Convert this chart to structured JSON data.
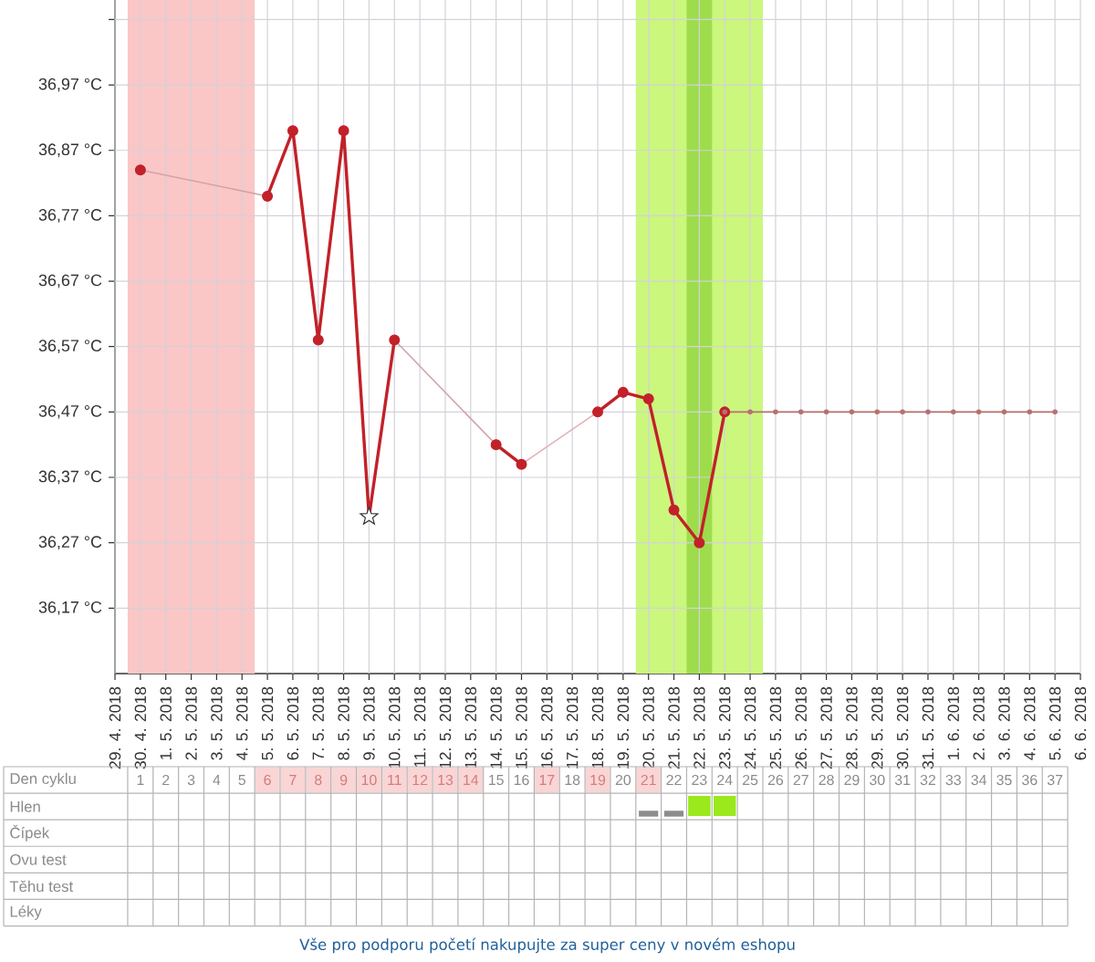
{
  "chart_data": [
    {
      "type": "line",
      "x": [
        "2018-04-30",
        "2018-05-01",
        "2018-05-02",
        "2018-05-03",
        "2018-05-04",
        "2018-05-05",
        "2018-05-06",
        "2018-05-07",
        "2018-05-08",
        "2018-05-09",
        "2018-05-10",
        "2018-05-11",
        "2018-05-12",
        "2018-05-13",
        "2018-05-14",
        "2018-05-15",
        "2018-05-16",
        "2018-05-17",
        "2018-05-18",
        "2018-05-19",
        "2018-05-20",
        "2018-05-21",
        "2018-05-22",
        "2018-05-23",
        "2018-05-24",
        "2018-05-25",
        "2018-05-26",
        "2018-05-27",
        "2018-05-28",
        "2018-05-29",
        "2018-05-30",
        "2018-05-31",
        "2018-06-01",
        "2018-06-02",
        "2018-06-03",
        "2018-06-04",
        "2018-06-05"
      ],
      "xlim": [
        "2018-04-29",
        "2018-06-06"
      ],
      "xticks": [
        {
          "value": "2018-04-29",
          "label": "29. 4. 2018"
        },
        {
          "value": "2018-04-30",
          "label": "30. 4. 2018"
        },
        {
          "value": "2018-05-01",
          "label": "1. 5. 2018"
        },
        {
          "value": "2018-05-02",
          "label": "2. 5. 2018"
        },
        {
          "value": "2018-05-03",
          "label": "3. 5. 2018"
        },
        {
          "value": "2018-05-04",
          "label": "4. 5. 2018"
        },
        {
          "value": "2018-05-05",
          "label": "5. 5. 2018"
        },
        {
          "value": "2018-05-06",
          "label": "6. 5. 2018"
        },
        {
          "value": "2018-05-07",
          "label": "7. 5. 2018"
        },
        {
          "value": "2018-05-08",
          "label": "8. 5. 2018"
        },
        {
          "value": "2018-05-09",
          "label": "9. 5. 2018"
        },
        {
          "value": "2018-05-10",
          "label": "10. 5. 2018"
        },
        {
          "value": "2018-05-11",
          "label": "11. 5. 2018"
        },
        {
          "value": "2018-05-12",
          "label": "12. 5. 2018"
        },
        {
          "value": "2018-05-13",
          "label": "13. 5. 2018"
        },
        {
          "value": "2018-05-14",
          "label": "14. 5. 2018"
        },
        {
          "value": "2018-05-15",
          "label": "15. 5. 2018"
        },
        {
          "value": "2018-05-16",
          "label": "16. 5. 2018"
        },
        {
          "value": "2018-05-17",
          "label": "17. 5. 2018"
        },
        {
          "value": "2018-05-18",
          "label": "18. 5. 2018"
        },
        {
          "value": "2018-05-19",
          "label": "19. 5. 2018"
        },
        {
          "value": "2018-05-20",
          "label": "20. 5. 2018"
        },
        {
          "value": "2018-05-21",
          "label": "21. 5. 2018"
        },
        {
          "value": "2018-05-22",
          "label": "22. 5. 2018"
        },
        {
          "value": "2018-05-23",
          "label": "23. 5. 2018"
        },
        {
          "value": "2018-05-24",
          "label": "24. 5. 2018"
        },
        {
          "value": "2018-05-25",
          "label": "25. 5. 2018"
        },
        {
          "value": "2018-05-26",
          "label": "26. 5. 2018"
        },
        {
          "value": "2018-05-27",
          "label": "27. 5. 2018"
        },
        {
          "value": "2018-05-28",
          "label": "28. 5. 2018"
        },
        {
          "value": "2018-05-29",
          "label": "29. 5. 2018"
        },
        {
          "value": "2018-05-30",
          "label": "30. 5. 2018"
        },
        {
          "value": "2018-05-31",
          "label": "31. 5. 2018"
        },
        {
          "value": "2018-06-01",
          "label": "1. 6. 2018"
        },
        {
          "value": "2018-06-02",
          "label": "2. 6. 2018"
        },
        {
          "value": "2018-06-03",
          "label": "3. 6. 2018"
        },
        {
          "value": "2018-06-04",
          "label": "4. 6. 2018"
        },
        {
          "value": "2018-06-05",
          "label": "5. 6. 2018"
        },
        {
          "value": "2018-06-06",
          "label": "6. 6. 2018"
        }
      ],
      "ylim": [
        36.07,
        37.1
      ],
      "yticks": [
        {
          "value": 36.17,
          "label": "36,17 °C"
        },
        {
          "value": 36.27,
          "label": "36,27 °C"
        },
        {
          "value": 36.37,
          "label": "36,37 °C"
        },
        {
          "value": 36.47,
          "label": "36,47 °C"
        },
        {
          "value": 36.57,
          "label": "36,57 °C"
        },
        {
          "value": 36.67,
          "label": "36,67 °C"
        },
        {
          "value": 36.77,
          "label": "36,77 °C"
        },
        {
          "value": 36.87,
          "label": "36,87 °C"
        },
        {
          "value": 36.97,
          "label": "36,97 °C"
        },
        {
          "value": 37.07,
          "label": null
        }
      ],
      "grid": true,
      "bands": [
        {
          "axis": "x",
          "from": "2018-04-29T12:00",
          "to": "2018-05-04T12:00",
          "color": "#fbc6c6"
        },
        {
          "axis": "x",
          "from": "2018-05-19T12:00",
          "to": "2018-05-24T12:00",
          "color": "#cbf77c"
        },
        {
          "axis": "x",
          "from": "2018-05-21T12:00",
          "to": "2018-05-22T12:00",
          "color": "#9edc4c"
        }
      ],
      "series": [
        {
          "color": "#c22129",
          "marker": "circle",
          "values": [
            36.84,
            null,
            null,
            null,
            null,
            36.8,
            36.9,
            36.58,
            36.9,
            36.31,
            36.58,
            null,
            null,
            null,
            36.42,
            36.39,
            null,
            null,
            36.47,
            36.5,
            36.49,
            36.32,
            36.27,
            36.47,
            null,
            null,
            null,
            null,
            null,
            null,
            null,
            null,
            null,
            null,
            null,
            null,
            null
          ]
        },
        {
          "color": "#b87070",
          "marker": "circle",
          "values": [
            null,
            null,
            null,
            null,
            null,
            null,
            null,
            null,
            null,
            null,
            null,
            null,
            null,
            null,
            null,
            null,
            null,
            null,
            null,
            null,
            null,
            null,
            null,
            36.47,
            36.47,
            36.47,
            36.47,
            36.47,
            36.47,
            36.47,
            36.47,
            36.47,
            36.47,
            36.47,
            36.47,
            36.47,
            36.47
          ]
        },
        {
          "color": "#d2a3a8",
          "x": [
            "2018-04-30",
            "2018-05-05"
          ],
          "values": [
            36.84,
            36.8
          ]
        },
        {
          "color": "#d2a3a8",
          "x": [
            "2018-05-10",
            "2018-05-14"
          ],
          "values": [
            36.58,
            36.42
          ]
        },
        {
          "color": "#e3b1b8",
          "x": [
            "2018-05-15",
            "2018-05-18"
          ],
          "values": [
            36.39,
            36.47
          ]
        },
        {
          "type": "scatter",
          "color": "#333333",
          "marker": "star",
          "x": [
            "2018-05-09"
          ],
          "values": [
            36.31
          ]
        }
      ]
    },
    {
      "type": "heatmap",
      "xlabel": "Den cyklu",
      "categories": [
        "1",
        "2",
        "3",
        "4",
        "5",
        "6",
        "7",
        "8",
        "9",
        "10",
        "11",
        "12",
        "13",
        "14",
        "15",
        "16",
        "17",
        "18",
        "19",
        "20",
        "21",
        "22",
        "23",
        "24",
        "25",
        "26",
        "27",
        "28",
        "29",
        "30",
        "31",
        "32",
        "33",
        "34",
        "35",
        "36",
        "37"
      ],
      "colors": [
        null,
        null,
        null,
        null,
        null,
        "#f9d5d5",
        "#f9d5d5",
        "#f9d5d5",
        "#f9d5d5",
        "#f9d5d5",
        "#f9d5d5",
        "#f9d5d5",
        "#f9d5d5",
        "#f9d5d5",
        null,
        null,
        "#f9d5d5",
        null,
        "#f9d5d5",
        null,
        "#f9d5d5",
        null,
        null,
        null,
        null,
        null,
        null,
        null,
        null,
        null,
        null,
        null,
        null,
        null,
        null,
        null,
        null
      ],
      "y_categories": [
        "Hlen",
        "Čípek",
        "Ovu test",
        "Těhu test",
        "Léky"
      ],
      "cells": [
        [
          null,
          null,
          null,
          null,
          null,
          null,
          null,
          null,
          null,
          null,
          null,
          null,
          null,
          null,
          null,
          null,
          null,
          null,
          null,
          null,
          {
            "shape": "dash",
            "color": "#8c8c8c"
          },
          {
            "shape": "dash",
            "color": "#8c8c8c"
          },
          {
            "shape": "square",
            "color": "#9be81c"
          },
          {
            "shape": "square",
            "color": "#9be81c"
          },
          null,
          null,
          null,
          null,
          null,
          null,
          null,
          null,
          null,
          null,
          null,
          null,
          null
        ],
        [
          null,
          null,
          null,
          null,
          null,
          null,
          null,
          null,
          null,
          null,
          null,
          null,
          null,
          null,
          null,
          null,
          null,
          null,
          null,
          null,
          null,
          null,
          null,
          null,
          null,
          null,
          null,
          null,
          null,
          null,
          null,
          null,
          null,
          null,
          null,
          null,
          null
        ],
        [
          null,
          null,
          null,
          null,
          null,
          null,
          null,
          null,
          null,
          null,
          null,
          null,
          null,
          null,
          null,
          null,
          null,
          null,
          null,
          null,
          null,
          null,
          null,
          null,
          null,
          null,
          null,
          null,
          null,
          null,
          null,
          null,
          null,
          null,
          null,
          null,
          null
        ],
        [
          null,
          null,
          null,
          null,
          null,
          null,
          null,
          null,
          null,
          null,
          null,
          null,
          null,
          null,
          null,
          null,
          null,
          null,
          null,
          null,
          null,
          null,
          null,
          null,
          null,
          null,
          null,
          null,
          null,
          null,
          null,
          null,
          null,
          null,
          null,
          null,
          null
        ],
        [
          null,
          null,
          null,
          null,
          null,
          null,
          null,
          null,
          null,
          null,
          null,
          null,
          null,
          null,
          null,
          null,
          null,
          null,
          null,
          null,
          null,
          null,
          null,
          null,
          null,
          null,
          null,
          null,
          null,
          null,
          null,
          null,
          null,
          null,
          null,
          null,
          null
        ]
      ],
      "annotations": [
        "Vše pro podporu početí nakupujte za super ceny v novém eshopu"
      ]
    }
  ]
}
